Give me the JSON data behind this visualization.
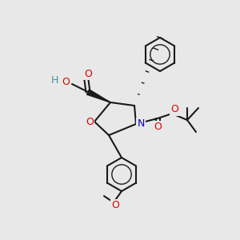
{
  "bg_color": "#e8e8e8",
  "bond_color": "#1a1a1a",
  "bond_lw": 1.5,
  "atom_colors": {
    "O": "#e00000",
    "N": "#0000cc",
    "C": "#1a1a1a",
    "H": "#4a9090"
  },
  "font_size": 9,
  "font_size_small": 7.5
}
